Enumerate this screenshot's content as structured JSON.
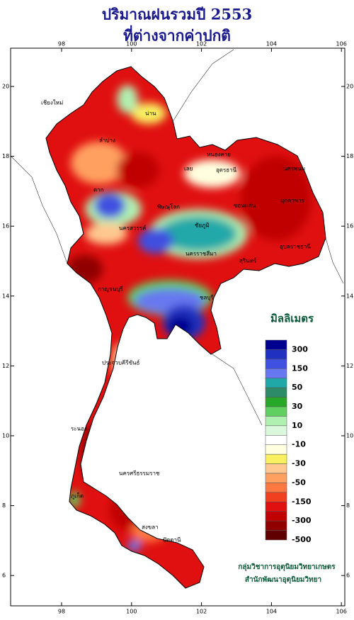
{
  "header": {
    "title": "ปริมาณฝนรวมปี 2553",
    "subtitle": "ที่ต่างจากค่าปกติ"
  },
  "map": {
    "lon_ticks": [
      98,
      100,
      102,
      104,
      106
    ],
    "lat_ticks": [
      20,
      18,
      16,
      14,
      12,
      10,
      8,
      6
    ],
    "places": [
      "เชียงใหม่",
      "น่าน",
      "ลำปาง",
      "หนองคาย",
      "อุดรธานี",
      "นครพนม",
      "มุกดาหาร",
      "ขอนแก่น",
      "เลย",
      "ตาก",
      "พิษณุโลก",
      "นครสวรรค์",
      "ชัยภูมิ",
      "นครราชสีมา",
      "สุรินทร์",
      "อุบลราชธานี",
      "กาญจนบุรี",
      "ชลบุรี",
      "ประจวบคีรีขันธ์",
      "ระนอง",
      "นครศรีธรรมราช",
      "ภูเก็ต",
      "สงขลา",
      "ปัตตานี"
    ]
  },
  "legend": {
    "title": "มิลลิเมตร",
    "colors": [
      "#000090",
      "#2030c0",
      "#4050e0",
      "#6878f0",
      "#20a8a8",
      "#2e8b6a",
      "#28a828",
      "#60d060",
      "#b0f0b0",
      "#dcf8dc",
      "#ffffff",
      "#ffffe0",
      "#f8f060",
      "#ffc890",
      "#ffa060",
      "#ff7840",
      "#f04020",
      "#e01010",
      "#c00000",
      "#900000",
      "#600000"
    ],
    "labels": [
      300,
      150,
      50,
      30,
      10,
      -10,
      -30,
      -50,
      -150,
      -300,
      -500
    ]
  },
  "credits": [
    "กลุ่มวิชาการอุตุนิยมวิทยาเกษตร",
    "สำนักพัฒนาอุตุนิยมวิทยา"
  ]
}
